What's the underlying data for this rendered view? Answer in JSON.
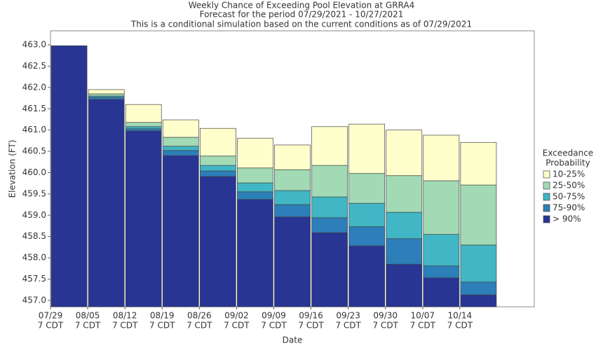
{
  "chart_data": {
    "type": "bar",
    "title": [
      "Weekly Chance of Exceeding Pool Elevation at GRRA4",
      "Forecast for the period 07/29/2021 - 10/27/2021",
      "This is a conditional simulation based on the current conditions as of 07/29/2021"
    ],
    "x_label": "Date",
    "y_label": "Elevation (FT)",
    "xtick_labels": [
      [
        "07/29",
        "7 CDT"
      ],
      [
        "08/05",
        "7 CDT"
      ],
      [
        "08/12",
        "7 CDT"
      ],
      [
        "08/19",
        "7 CDT"
      ],
      [
        "08/26",
        "7 CDT"
      ],
      [
        "09/02",
        "7 CDT"
      ],
      [
        "09/09",
        "7 CDT"
      ],
      [
        "09/16",
        "7 CDT"
      ],
      [
        "09/23",
        "7 CDT"
      ],
      [
        "09/30",
        "7 CDT"
      ],
      [
        "10/07",
        "7 CDT"
      ],
      [
        "10/14",
        "7 CDT"
      ]
    ],
    "legend_title": [
      "Exceedance",
      "Probability"
    ],
    "ylim": [
      456.85,
      463.33
    ],
    "yticks": [
      {
        "value": 457.0,
        "label": "457.0"
      },
      457.5,
      {
        "value": 458.0,
        "label": "458.0"
      },
      458.5,
      {
        "value": 459.0,
        "label": "459.0"
      },
      459.5,
      {
        "value": 460.0,
        "label": "460.0"
      },
      460.5,
      {
        "value": 461.0,
        "label": "461.0"
      },
      461.5,
      {
        "value": 462.0,
        "label": "462.0"
      },
      462.5,
      {
        "value": 463.0,
        "label": "463.0"
      }
    ],
    "series": [
      {
        "name": "10-25%",
        "color": "#ffffcc",
        "values": [
          462.98,
          461.95,
          461.6,
          461.24,
          461.04,
          460.81,
          460.65,
          461.08,
          461.14,
          461.0,
          460.88,
          460.71
        ]
      },
      {
        "name": "25-50%",
        "color": "#a1dab4",
        "values": [
          462.98,
          461.85,
          461.18,
          460.83,
          460.39,
          460.11,
          460.07,
          460.17,
          459.98,
          459.93,
          459.81,
          459.71
        ]
      },
      {
        "name": "50-75%",
        "color": "#41b6c4",
        "values": [
          462.98,
          461.8,
          461.08,
          460.62,
          460.17,
          459.76,
          459.58,
          459.43,
          459.28,
          459.07,
          458.55,
          458.3
        ]
      },
      {
        "name": "75-90%",
        "color": "#2c7fb8",
        "values": [
          462.98,
          461.77,
          461.03,
          460.52,
          460.04,
          459.55,
          459.25,
          458.94,
          458.73,
          458.45,
          457.81,
          457.43
        ]
      },
      {
        "name": "> 90%",
        "color": "#283593",
        "values": [
          462.98,
          461.72,
          460.98,
          460.4,
          459.91,
          459.37,
          458.96,
          458.59,
          458.28,
          457.85,
          457.53,
          457.13
        ]
      }
    ]
  }
}
